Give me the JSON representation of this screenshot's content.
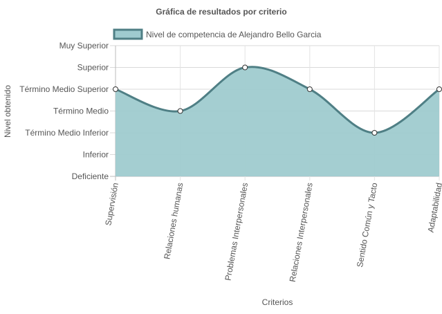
{
  "chart_data": {
    "type": "area",
    "title": "Gráfica de resultados por criterio",
    "xlabel": "Criterios",
    "ylabel": "Nivel obtenido",
    "categories": [
      "Supervisión",
      "Relaciones humanas",
      "Problemas Interpersonales",
      "Relaciones Interpersonales",
      "Sentido Común y Tacto",
      "Adaptabilidad"
    ],
    "y_levels": [
      "Deficiente",
      "Inferior",
      "Término Medio Inferior",
      "Término Medio",
      "Término Medio Superior",
      "Superior",
      "Muy Superior"
    ],
    "ylim": [
      0,
      6
    ],
    "grid": true,
    "legend_position": "top",
    "series": [
      {
        "name": "Nivel de competencia de Alejandro Bello Garcia",
        "values": [
          4,
          3,
          5,
          4,
          2,
          4
        ],
        "fill_color": "#9fcbcf",
        "line_color": "#4f7f85"
      }
    ]
  }
}
